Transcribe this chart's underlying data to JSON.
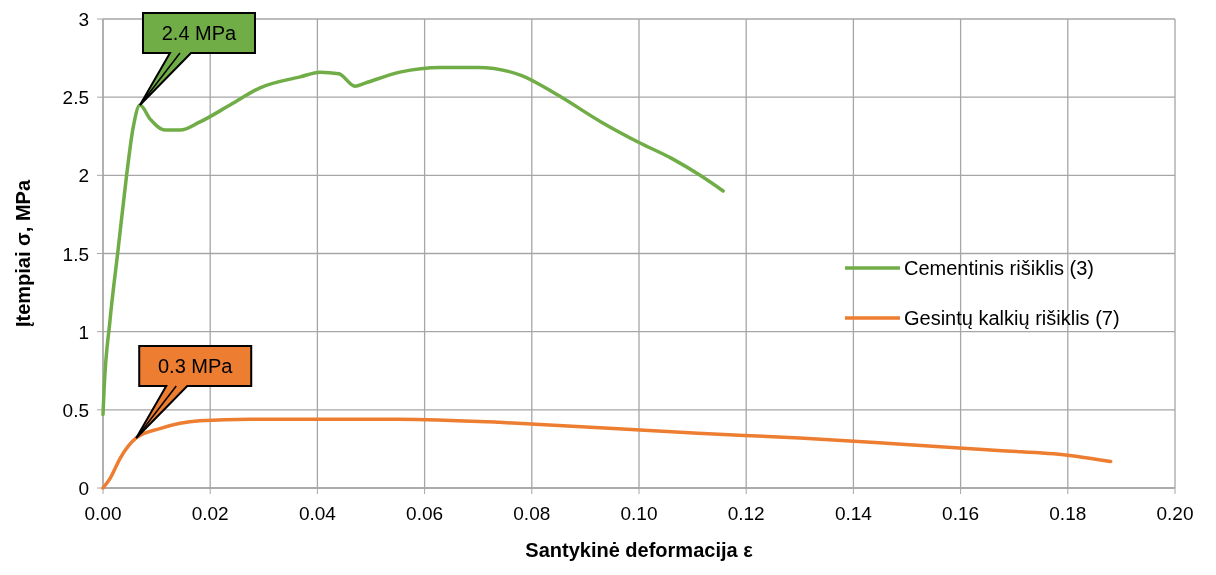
{
  "chart_data": {
    "type": "line",
    "xlabel": "Santykinė deformacija ε",
    "ylabel": "Įtempiai σ, MPa",
    "xlim": [
      0,
      0.2
    ],
    "xticks": [
      {
        "value": 0,
        "label": "0.00"
      },
      {
        "value": 0.02,
        "label": "0.02"
      },
      {
        "value": 0.04,
        "label": "0.04"
      },
      {
        "value": 0.06,
        "label": "0.06"
      },
      {
        "value": 0.08,
        "label": "0.08"
      },
      {
        "value": 0.1,
        "label": "0.10"
      },
      {
        "value": 0.12,
        "label": "0.12"
      },
      {
        "value": 0.14,
        "label": "0.14"
      },
      {
        "value": 0.16,
        "label": "0.16"
      },
      {
        "value": 0.18,
        "label": "0.18"
      },
      {
        "value": 0.2,
        "label": "0.20"
      }
    ],
    "ylim": [
      0,
      3
    ],
    "yticks": [
      0,
      0.5,
      1,
      1.5,
      2,
      2.5,
      3
    ],
    "grid": true,
    "legend": "right",
    "marker": "none",
    "line_style": "solid",
    "series": [
      {
        "name": "Cementinis rišiklis (3)",
        "color": "#70ad47",
        "x": [
          0,
          0.0002,
          0.0013,
          0.0028,
          0.0043,
          0.0056,
          0.0069,
          0.0088,
          0.0116,
          0.0144,
          0.018,
          0.0237,
          0.0293,
          0.0368,
          0.0405,
          0.044,
          0.047,
          0.0489,
          0.0554,
          0.063,
          0.07,
          0.078,
          0.085,
          0.093,
          0.1,
          0.106,
          0.1114,
          0.1157
        ],
        "values": [
          0.47,
          0.63,
          1.07,
          1.52,
          1.97,
          2.3,
          2.45,
          2.36,
          2.29,
          2.29,
          2.34,
          2.45,
          2.56,
          2.63,
          2.66,
          2.65,
          2.57,
          2.59,
          2.66,
          2.69,
          2.69,
          2.64,
          2.51,
          2.34,
          2.21,
          2.11,
          2.0,
          1.9
        ]
      },
      {
        "name": "Gesintų kalkių rišiklis (7)",
        "color": "#ed7d31",
        "x": [
          0,
          0.0013,
          0.0032,
          0.0062,
          0.0106,
          0.018,
          0.0274,
          0.037,
          0.055,
          0.074,
          0.085,
          0.111,
          0.13,
          0.149,
          0.167,
          0.18,
          0.188
        ],
        "values": [
          0,
          0.06,
          0.19,
          0.32,
          0.38,
          0.43,
          0.44,
          0.44,
          0.44,
          0.42,
          0.4,
          0.35,
          0.32,
          0.28,
          0.24,
          0.21,
          0.17
        ]
      }
    ],
    "annotations": [
      {
        "text": "2.4 MPa",
        "x": 0.0069,
        "y": 2.45
      },
      {
        "text": "0.3 MPa",
        "x": 0.0062,
        "y": 0.32
      }
    ]
  }
}
